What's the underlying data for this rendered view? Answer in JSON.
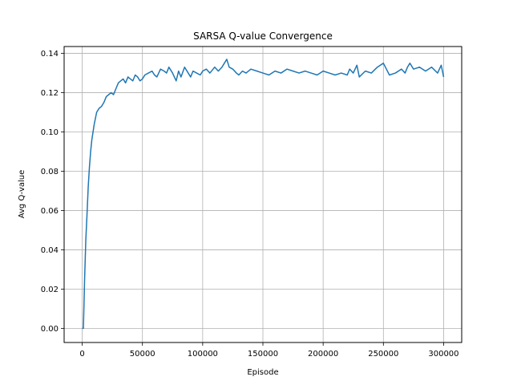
{
  "chart_data": {
    "type": "line",
    "title": "SARSA Q-value Convergence",
    "xlabel": "Episode",
    "ylabel": "Avg Q-value",
    "xlim": [
      -15000,
      315000
    ],
    "ylim": [
      -0.0072,
      0.1435
    ],
    "grid": true,
    "line_color": "#1f77b4",
    "xticks": [
      0,
      50000,
      100000,
      150000,
      200000,
      250000,
      300000
    ],
    "xtick_labels": [
      "0",
      "50000",
      "100000",
      "150000",
      "200000",
      "250000",
      "300000"
    ],
    "yticks": [
      0.0,
      0.02,
      0.04,
      0.06,
      0.08,
      0.1,
      0.12,
      0.14
    ],
    "ytick_labels": [
      "0.00",
      "0.02",
      "0.04",
      "0.06",
      "0.08",
      "0.10",
      "0.12",
      "0.14"
    ],
    "series": [
      {
        "x": [
          0,
          1000,
          2000,
          3000,
          4000,
          5000,
          6000,
          7000,
          8000,
          9000,
          10000,
          12000,
          14000,
          16000,
          18000,
          20000,
          22000,
          24000,
          26000,
          28000,
          30000,
          32000,
          34000,
          36000,
          38000,
          40000,
          42000,
          44000,
          46000,
          48000,
          50000,
          52000,
          55000,
          58000,
          60000,
          62000,
          65000,
          68000,
          70000,
          72000,
          75000,
          78000,
          80000,
          82000,
          85000,
          88000,
          90000,
          92000,
          95000,
          98000,
          100000,
          103000,
          106000,
          110000,
          113000,
          116000,
          118000,
          120000,
          122000,
          125000,
          128000,
          130000,
          133000,
          136000,
          140000,
          145000,
          150000,
          155000,
          160000,
          165000,
          170000,
          175000,
          180000,
          185000,
          190000,
          195000,
          200000,
          205000,
          210000,
          215000,
          220000,
          222000,
          225000,
          228000,
          230000,
          235000,
          240000,
          245000,
          250000,
          255000,
          260000,
          265000,
          268000,
          270000,
          272000,
          275000,
          280000,
          285000,
          290000,
          295000,
          298000,
          300000
        ],
        "y": [
          0.0,
          0.0,
          0.025,
          0.045,
          0.058,
          0.072,
          0.082,
          0.09,
          0.096,
          0.1,
          0.104,
          0.11,
          0.112,
          0.113,
          0.115,
          0.118,
          0.119,
          0.12,
          0.119,
          0.122,
          0.125,
          0.126,
          0.127,
          0.125,
          0.128,
          0.127,
          0.126,
          0.129,
          0.128,
          0.126,
          0.127,
          0.129,
          0.13,
          0.131,
          0.129,
          0.128,
          0.132,
          0.131,
          0.13,
          0.133,
          0.13,
          0.126,
          0.131,
          0.128,
          0.133,
          0.13,
          0.128,
          0.131,
          0.13,
          0.129,
          0.131,
          0.132,
          0.13,
          0.133,
          0.131,
          0.133,
          0.135,
          0.137,
          0.133,
          0.132,
          0.13,
          0.129,
          0.131,
          0.13,
          0.132,
          0.131,
          0.13,
          0.129,
          0.131,
          0.13,
          0.132,
          0.131,
          0.13,
          0.131,
          0.13,
          0.129,
          0.131,
          0.13,
          0.129,
          0.13,
          0.129,
          0.132,
          0.13,
          0.134,
          0.128,
          0.131,
          0.13,
          0.133,
          0.135,
          0.129,
          0.13,
          0.132,
          0.13,
          0.133,
          0.135,
          0.132,
          0.133,
          0.131,
          0.133,
          0.13,
          0.134,
          0.128
        ]
      }
    ]
  }
}
